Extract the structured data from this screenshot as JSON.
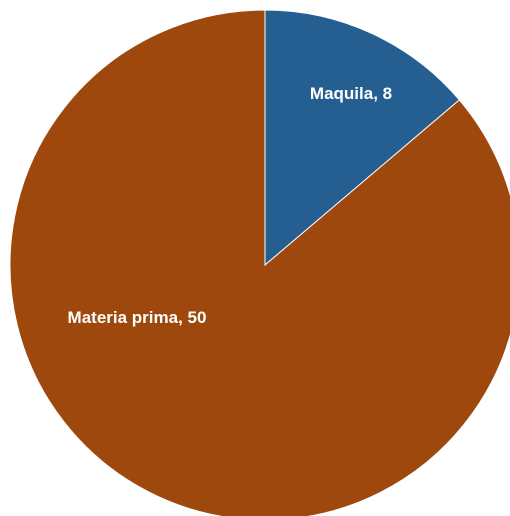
{
  "chart_data": {
    "type": "pie",
    "title": "",
    "start_angle_deg": 0,
    "direction": "clockwise",
    "slices": [
      {
        "label": "Maquila, 8",
        "name": "Maquila",
        "value": 8,
        "color": "#255E91"
      },
      {
        "label": "Materia prima, 50",
        "name": "Materia prima",
        "value": 50,
        "color": "#9E480E"
      }
    ],
    "legend": "none",
    "data_labels": "inside"
  }
}
